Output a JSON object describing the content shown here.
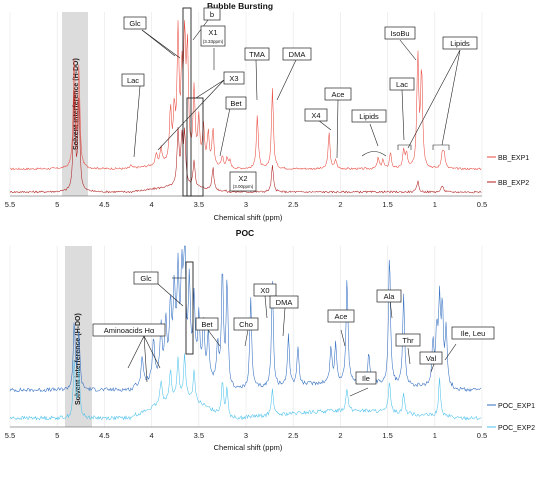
{
  "chart_data": [
    {
      "type": "line",
      "title": "Bubble Bursting",
      "xlabel": "Chemical shift (ppm)",
      "ylabel": "",
      "xlim": [
        5.5,
        0.5
      ],
      "x_reversed": true,
      "x_ticks": [
        "5.5",
        "5",
        "4.5",
        "4",
        "3.5",
        "3",
        "2.5",
        "2",
        "1.5",
        "1",
        "0.5"
      ],
      "grid": true,
      "legend_position": "right",
      "shaded_region": {
        "from": 4.95,
        "to": 4.68,
        "label": "Solvent interference (H-DO)"
      },
      "series": [
        {
          "name": "BB_EXP1",
          "color": "#e8493e",
          "baseline": 0,
          "peaks": [
            [
              4.82,
              120
            ],
            [
              4.77,
              110
            ],
            [
              4.22,
              4
            ],
            [
              3.95,
              12
            ],
            [
              3.9,
              18
            ],
            [
              3.8,
              60
            ],
            [
              3.76,
              55
            ],
            [
              3.72,
              140
            ],
            [
              3.68,
              90
            ],
            [
              3.65,
              130
            ],
            [
              3.62,
              120
            ],
            [
              3.55,
              80
            ],
            [
              3.5,
              50
            ],
            [
              3.45,
              42
            ],
            [
              3.4,
              35
            ],
            [
              3.35,
              40
            ],
            [
              3.25,
              12
            ],
            [
              3.2,
              10
            ],
            [
              3.17,
              8
            ],
            [
              2.88,
              60
            ],
            [
              2.72,
              90
            ],
            [
              2.12,
              40
            ],
            [
              2.05,
              10
            ],
            [
              1.6,
              12
            ],
            [
              1.55,
              10
            ],
            [
              1.47,
              18
            ],
            [
              1.33,
              20
            ],
            [
              1.3,
              16
            ],
            [
              1.18,
              125
            ],
            [
              1.14,
              110
            ],
            [
              0.92,
              18
            ],
            [
              0.9,
              15
            ]
          ]
        },
        {
          "name": "BB_EXP2",
          "color": "#b01e1e",
          "baseline": 0,
          "peaks": [
            [
              4.82,
              110
            ],
            [
              4.77,
              100
            ],
            [
              3.72,
              60
            ],
            [
              3.68,
              50
            ],
            [
              3.65,
              58
            ],
            [
              3.55,
              30
            ],
            [
              3.35,
              25
            ],
            [
              2.72,
              30
            ],
            [
              1.18,
              12
            ],
            [
              0.92,
              8
            ]
          ]
        }
      ],
      "annotations": [
        {
          "text": "Glc",
          "x": 3.75
        },
        {
          "text": "b",
          "x": 3.5
        },
        {
          "text": "X1",
          "x": 3.35
        },
        {
          "text": "(3.33ppm)",
          "x": 3.33
        },
        {
          "text": "Lac",
          "x": 4.12
        },
        {
          "text": "X3",
          "x": 3.6
        },
        {
          "text": "Bet",
          "x": 3.25
        },
        {
          "text": "TMA",
          "x": 2.88
        },
        {
          "text": "DMA",
          "x": 2.72
        },
        {
          "text": "Ace",
          "x": 2.0
        },
        {
          "text": "X4",
          "x": 2.1
        },
        {
          "text": "Lipids",
          "x": 1.6
        },
        {
          "text": "Lac",
          "x": 1.33
        },
        {
          "text": "IsoBu",
          "x": 1.15
        },
        {
          "text": "Lipids",
          "x": 0.9
        },
        {
          "text": "X2",
          "x": 3.0
        },
        {
          "text": "(3.00ppm)",
          "x": 3.0
        }
      ]
    },
    {
      "type": "line",
      "title": "POC",
      "xlabel": "Chemical shift (ppm)",
      "ylabel": "",
      "xlim": [
        5.5,
        0.5
      ],
      "x_reversed": true,
      "x_ticks": [
        "5.5",
        "5",
        "4.5",
        "4",
        "3.5",
        "3",
        "2.5",
        "2",
        "1.5",
        "1",
        "0.5"
      ],
      "grid": true,
      "legend_position": "right",
      "shaded_region": {
        "from": 4.95,
        "to": 4.68,
        "label": "Solvent interference (H-DO)"
      },
      "series": [
        {
          "name": "POC_EXP1",
          "color": "#2f6cc0",
          "baseline": 0,
          "peaks": [
            [
              4.82,
              70
            ],
            [
              4.77,
              60
            ],
            [
              4.1,
              30
            ],
            [
              3.98,
              42
            ],
            [
              3.9,
              50
            ],
            [
              3.85,
              55
            ],
            [
              3.8,
              70
            ],
            [
              3.76,
              85
            ],
            [
              3.72,
              100
            ],
            [
              3.68,
              95
            ],
            [
              3.65,
              140
            ],
            [
              3.6,
              90
            ],
            [
              3.55,
              75
            ],
            [
              3.5,
              60
            ],
            [
              3.45,
              55
            ],
            [
              3.4,
              48
            ],
            [
              3.3,
              40
            ],
            [
              3.25,
              120
            ],
            [
              3.2,
              110
            ],
            [
              2.95,
              95
            ],
            [
              2.72,
              110
            ],
            [
              2.55,
              55
            ],
            [
              2.45,
              40
            ],
            [
              2.1,
              38
            ],
            [
              2.05,
              40
            ],
            [
              1.93,
              110
            ],
            [
              1.7,
              30
            ],
            [
              1.48,
              140
            ],
            [
              1.33,
              95
            ],
            [
              1.02,
              48
            ],
            [
              0.98,
              58
            ],
            [
              0.95,
              85
            ],
            [
              0.92,
              80
            ],
            [
              0.88,
              62
            ]
          ]
        },
        {
          "name": "POC_EXP2",
          "color": "#4cc1ec",
          "baseline": 0,
          "peaks": [
            [
              4.82,
              60
            ],
            [
              4.77,
              50
            ],
            [
              3.9,
              25
            ],
            [
              3.8,
              30
            ],
            [
              3.72,
              40
            ],
            [
              3.65,
              45
            ],
            [
              3.55,
              30
            ],
            [
              3.25,
              35
            ],
            [
              3.2,
              30
            ],
            [
              2.72,
              30
            ],
            [
              1.93,
              25
            ],
            [
              1.48,
              35
            ],
            [
              1.33,
              22
            ],
            [
              0.95,
              40
            ]
          ]
        }
      ],
      "annotations": [
        {
          "text": "Glc",
          "x": 3.78
        },
        {
          "text": "X0",
          "x": 2.95
        },
        {
          "text": "Aminoacids Hα",
          "x": 3.95
        },
        {
          "text": "Bet",
          "x": 3.25
        },
        {
          "text": "Cho",
          "x": 3.2
        },
        {
          "text": "DMA",
          "x": 2.72
        },
        {
          "text": "Ace",
          "x": 1.93
        },
        {
          "text": "Ala",
          "x": 1.48
        },
        {
          "text": "Thr",
          "x": 1.33
        },
        {
          "text": "Ile",
          "x": 1.95
        },
        {
          "text": "Val",
          "x": 1.0
        },
        {
          "text": "Ile, Leu",
          "x": 0.92
        }
      ]
    }
  ]
}
